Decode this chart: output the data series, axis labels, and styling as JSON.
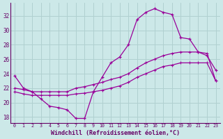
{
  "xlabel": "Windchill (Refroidissement éolien,°C)",
  "background_color": "#cce8e8",
  "grid_color": "#b0d0d0",
  "line_color": "#990099",
  "tick_color": "#660066",
  "xlim": [
    -0.5,
    23.5
  ],
  "ylim": [
    17.2,
    33.8
  ],
  "xticks": [
    0,
    1,
    2,
    3,
    4,
    5,
    6,
    7,
    8,
    9,
    10,
    11,
    12,
    13,
    14,
    15,
    16,
    17,
    18,
    19,
    20,
    21,
    22,
    23
  ],
  "yticks": [
    18,
    20,
    22,
    24,
    26,
    28,
    30,
    32
  ],
  "line1_x": [
    0,
    1,
    2,
    3,
    4,
    5,
    6,
    7,
    8,
    9,
    10,
    11,
    12,
    13,
    14,
    15,
    16,
    17,
    18,
    19,
    20,
    21,
    22,
    23
  ],
  "line1_y": [
    23.7,
    22.0,
    21.5,
    20.5,
    19.5,
    19.3,
    19.0,
    17.8,
    17.8,
    21.5,
    23.5,
    25.5,
    26.3,
    28.0,
    31.5,
    32.5,
    33.0,
    32.5,
    32.2,
    29.0,
    28.8,
    27.0,
    26.5,
    24.5
  ],
  "line2_x": [
    0,
    1,
    2,
    3,
    4,
    5,
    6,
    7,
    8,
    9,
    10,
    11,
    12,
    13,
    14,
    15,
    16,
    17,
    18,
    19,
    20,
    21,
    22,
    23
  ],
  "line2_y": [
    22.0,
    21.8,
    21.5,
    21.5,
    21.5,
    21.5,
    21.5,
    22.0,
    22.2,
    22.5,
    22.8,
    23.2,
    23.5,
    24.0,
    24.8,
    25.5,
    26.0,
    26.5,
    26.8,
    27.0,
    27.0,
    27.0,
    26.8,
    23.0
  ],
  "line3_x": [
    0,
    1,
    2,
    3,
    4,
    5,
    6,
    7,
    8,
    9,
    10,
    11,
    12,
    13,
    14,
    15,
    16,
    17,
    18,
    19,
    20,
    21,
    22,
    23
  ],
  "line3_y": [
    21.5,
    21.2,
    21.0,
    21.0,
    21.0,
    21.0,
    21.0,
    21.2,
    21.3,
    21.5,
    21.7,
    22.0,
    22.3,
    22.8,
    23.5,
    24.0,
    24.5,
    25.0,
    25.2,
    25.5,
    25.5,
    25.5,
    25.5,
    23.0
  ]
}
